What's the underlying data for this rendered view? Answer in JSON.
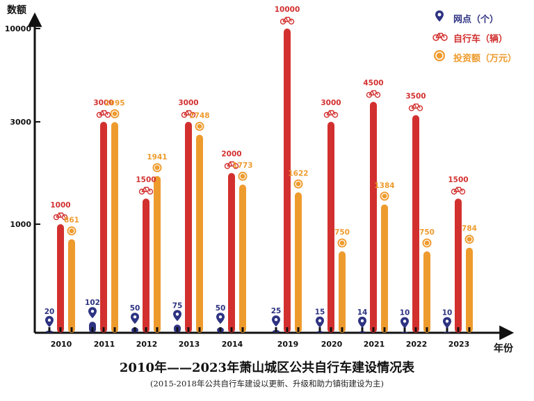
{
  "colors": {
    "outlets": "#2e3382",
    "bikes": "#d2302f",
    "investment": "#ee9b2e",
    "axis": "#111111"
  },
  "legend": [
    {
      "icon": "location-pin-icon",
      "label": "网点（个）",
      "color": "#2e3382"
    },
    {
      "icon": "bicycle-icon",
      "label": "自行车（辆）",
      "color": "#d2302f"
    },
    {
      "icon": "coin-icon",
      "label": "投资额（万元）",
      "color": "#ee9b2e"
    }
  ],
  "chart_data": {
    "type": "bar",
    "title": "2010年——2023年萧山城区公共自行车建设情况表",
    "subtitle": "(2015-2018年公共自行车建设以更新、升级和助力镇街建设为主)",
    "xlabel": "年份",
    "ylabel": "数额",
    "y_ticks": [
      1000,
      3000,
      10000
    ],
    "y_scale": "piecewise (broken axis)",
    "categories": [
      "2010",
      "2011",
      "2012",
      "2013",
      "2014",
      "2019",
      "2020",
      "2021",
      "2022",
      "2023"
    ],
    "series": [
      {
        "name": "网点（个）",
        "values": [
          20,
          102,
          50,
          75,
          50,
          25,
          15,
          14,
          10,
          10
        ]
      },
      {
        "name": "自行车（辆）",
        "values": [
          1000,
          3000,
          1500,
          3000,
          2000,
          10000,
          3000,
          4500,
          3500,
          1500
        ]
      },
      {
        "name": "投资额（万元）",
        "values": [
          861,
          2995,
          1941,
          2748,
          1773,
          1622,
          750,
          1384,
          750,
          784
        ]
      }
    ]
  }
}
